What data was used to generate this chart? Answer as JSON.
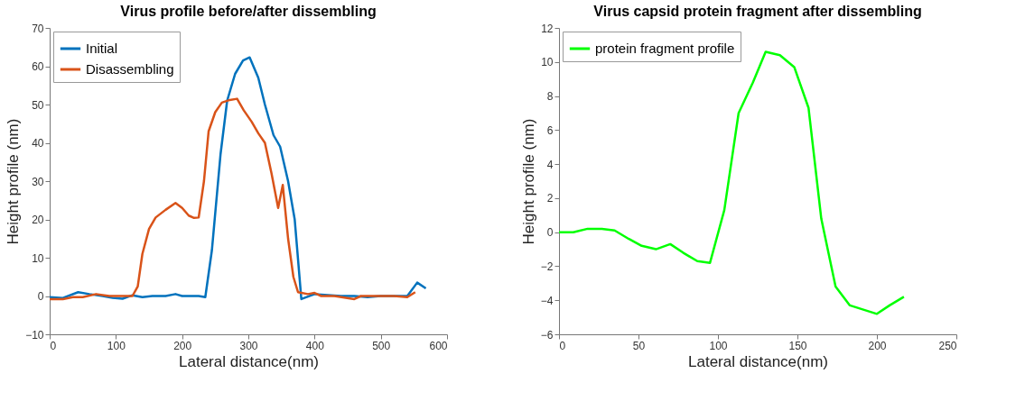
{
  "chart_data": [
    {
      "type": "line",
      "title": "Virus profile before/after dissembling",
      "xlabel": "Lateral distance(nm)",
      "ylabel": "Height profile (nm)",
      "xlim": [
        0,
        600
      ],
      "xticks": [
        0,
        100,
        200,
        300,
        400,
        500,
        600
      ],
      "ylim": [
        -10,
        70
      ],
      "yticks": [
        -10,
        0,
        10,
        20,
        30,
        40,
        50,
        60,
        70
      ],
      "grid": false,
      "legend": "top left",
      "line_style": "solid",
      "series": [
        {
          "name": "Initial",
          "color": "#0072bd",
          "x": [
            0,
            20,
            43,
            60,
            80,
            95,
            110,
            125,
            140,
            155,
            175,
            190,
            200,
            225,
            235,
            245,
            258,
            268,
            280,
            292,
            302,
            315,
            325,
            338,
            348,
            360,
            370,
            380,
            400,
            425,
            440,
            460,
            480,
            500,
            520,
            540,
            555,
            568
          ],
          "values": [
            -0.3,
            -0.5,
            1,
            0.5,
            0,
            -0.5,
            -0.7,
            0.2,
            -0.3,
            0,
            0,
            0.5,
            0,
            0,
            -0.3,
            12,
            37,
            51,
            58,
            61.5,
            62.3,
            57,
            50,
            42,
            39,
            30,
            20,
            -0.8,
            0.5,
            0.2,
            0,
            0,
            -0.3,
            0,
            0,
            0,
            3.5,
            2
          ]
        },
        {
          "name": "Disassembling",
          "color": "#d95319",
          "x": [
            0,
            20,
            35,
            50,
            70,
            90,
            110,
            125,
            133,
            140,
            150,
            160,
            175,
            190,
            200,
            210,
            218,
            225,
            233,
            240,
            250,
            260,
            272,
            283,
            293,
            305,
            315,
            325,
            335,
            345,
            352,
            360,
            368,
            375,
            390,
            400,
            410,
            430,
            460,
            470,
            500,
            520,
            540,
            552
          ],
          "values": [
            -0.8,
            -0.8,
            -0.3,
            -0.3,
            0.5,
            0,
            0,
            0,
            2.5,
            11,
            17.5,
            20.5,
            22.5,
            24.3,
            23,
            21,
            20.4,
            20.5,
            30,
            43,
            48,
            50.5,
            51.2,
            51.5,
            48.5,
            45.5,
            42.5,
            40,
            32,
            23,
            29,
            15,
            5,
            1,
            0.5,
            0.8,
            0,
            0,
            -0.8,
            0,
            0,
            0,
            -0.3,
            1
          ]
        }
      ]
    },
    {
      "type": "line",
      "title": "Virus capsid protein fragment after dissembling",
      "xlabel": "Lateral distance(nm)",
      "ylabel": "Height profile (nm)",
      "xlim": [
        0,
        250
      ],
      "xticks": [
        0,
        50,
        100,
        150,
        200,
        250
      ],
      "ylim": [
        -6,
        12
      ],
      "yticks": [
        -6,
        -4,
        -2,
        0,
        2,
        4,
        6,
        8,
        10,
        12
      ],
      "grid": false,
      "legend": "top left",
      "line_style": "solid",
      "series": [
        {
          "name": "protein fragment profile",
          "color": "#00ff00",
          "x": [
            0,
            9,
            18,
            27,
            35,
            44,
            52,
            61,
            70,
            78,
            87,
            95,
            104,
            113,
            122,
            130,
            139,
            148,
            157,
            165,
            174,
            183,
            200,
            208,
            217
          ],
          "values": [
            0,
            0,
            0.2,
            0.2,
            0.1,
            -0.4,
            -0.8,
            -1,
            -0.7,
            -1.2,
            -1.7,
            -1.8,
            1.3,
            7,
            8.8,
            10.6,
            10.4,
            9.7,
            7.3,
            0.8,
            -3.2,
            -4.3,
            -4.8,
            -4.3,
            -3.8
          ]
        }
      ]
    }
  ]
}
